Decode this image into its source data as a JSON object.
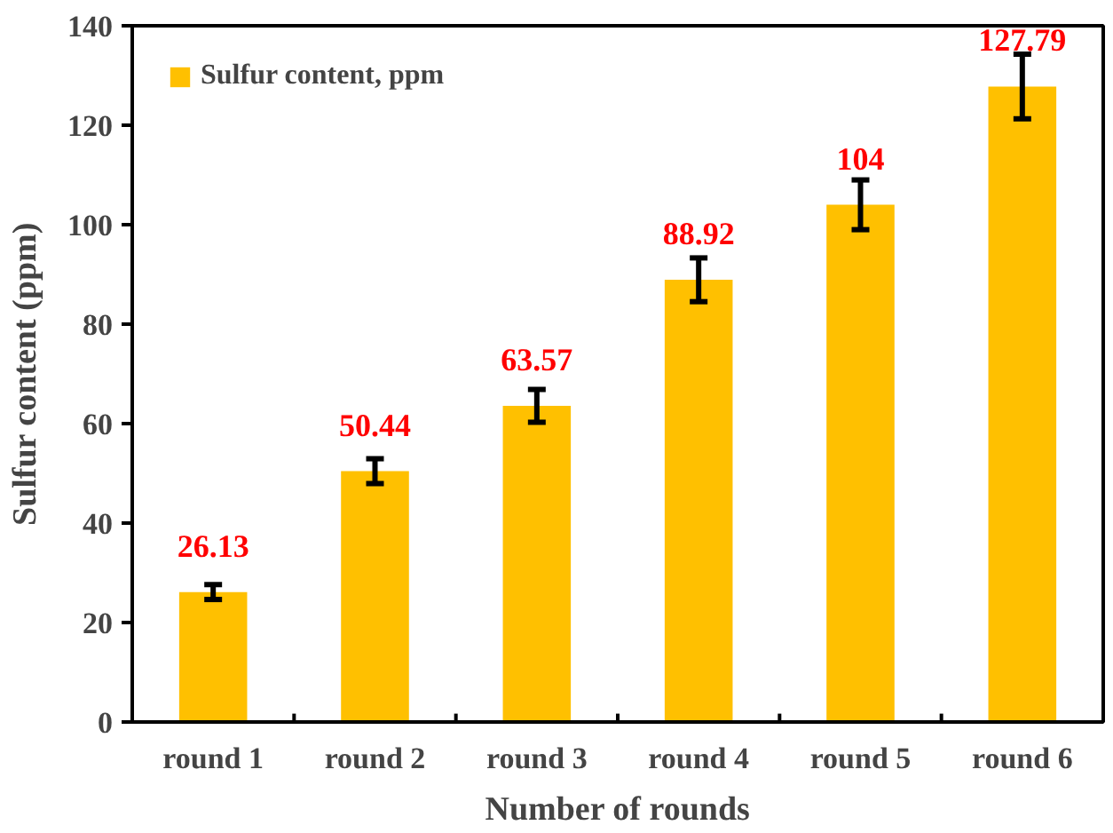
{
  "chart_data": {
    "type": "bar",
    "xlabel": "Number of rounds",
    "ylabel": "Sulfur content (ppm)",
    "categories": [
      "round 1",
      "round 2",
      "round 3",
      "round 4",
      "round 5",
      "round 6"
    ],
    "series": [
      {
        "name": "Sulfur content, ppm",
        "color": "#ffc000",
        "values": [
          26.13,
          50.44,
          63.57,
          88.92,
          104,
          127.79
        ],
        "errors": [
          1.5,
          2.5,
          3.3,
          4.4,
          5,
          6.5
        ]
      }
    ],
    "data_labels": true,
    "ylim": [
      0,
      140
    ],
    "yticks": [
      0,
      20,
      40,
      60,
      80,
      100,
      120,
      140
    ],
    "grid": false,
    "legend": "top left"
  }
}
